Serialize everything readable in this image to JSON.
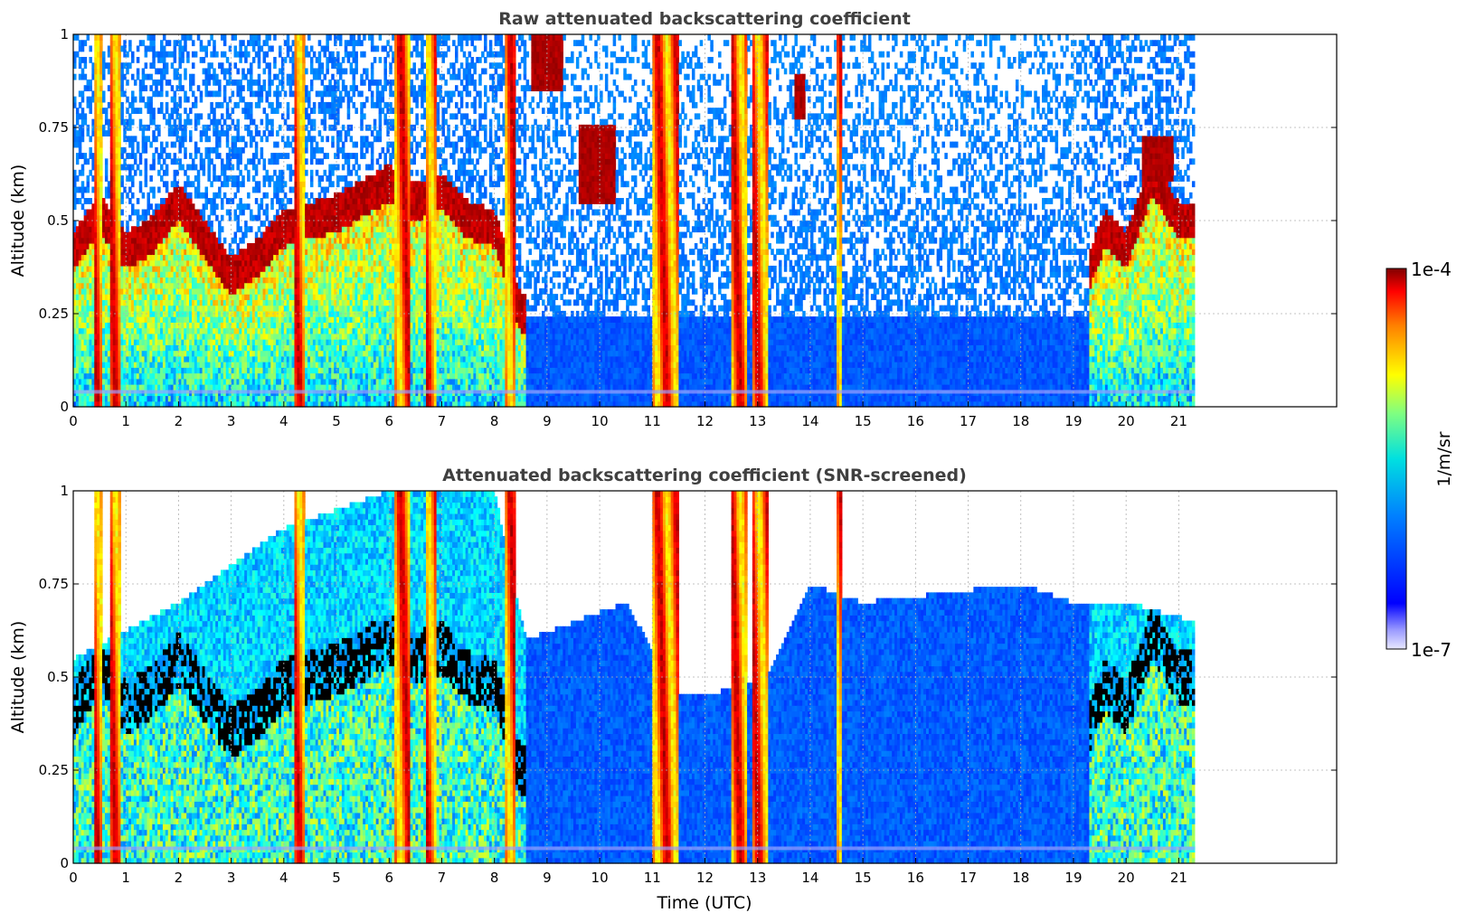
{
  "figure": {
    "xlabel": "Time (UTC)",
    "colorbar": {
      "label": "1/m/sr",
      "min_label": "1e-7",
      "max_label": "1e-4",
      "scale": "log",
      "colormap": "jet"
    }
  },
  "chart_data": [
    {
      "type": "heatmap",
      "title": "Raw attenuated backscattering coefficient",
      "xlabel": "",
      "ylabel": "Altitude (km)",
      "xlim": [
        0,
        24
      ],
      "ylim": [
        0,
        1
      ],
      "data_extent_x": [
        0,
        21.3
      ],
      "xticks": [
        "0",
        "1",
        "2",
        "3",
        "4",
        "5",
        "6",
        "7",
        "8",
        "9",
        "10",
        "11",
        "12",
        "13",
        "14",
        "15",
        "16",
        "17",
        "18",
        "19",
        "20",
        "21"
      ],
      "yticks": [
        "0",
        "0.25",
        "0.5",
        "0.75",
        "1"
      ],
      "grid": true,
      "screened": false,
      "features": {
        "boundary_layer_top_km": [
          [
            0,
            0.42
          ],
          [
            0.5,
            0.52
          ],
          [
            1,
            0.42
          ],
          [
            1.5,
            0.46
          ],
          [
            2,
            0.55
          ],
          [
            2.5,
            0.45
          ],
          [
            3,
            0.35
          ],
          [
            3.5,
            0.4
          ],
          [
            4,
            0.48
          ],
          [
            4.5,
            0.5
          ],
          [
            5,
            0.52
          ],
          [
            5.5,
            0.56
          ],
          [
            6,
            0.6
          ],
          [
            6.5,
            0.55
          ],
          [
            7,
            0.58
          ],
          [
            7.5,
            0.5
          ],
          [
            8,
            0.48
          ],
          [
            8.5,
            0.25
          ],
          [
            12,
            0.25
          ],
          [
            19,
            0.25
          ],
          [
            19.6,
            0.48
          ],
          [
            20,
            0.42
          ],
          [
            20.5,
            0.62
          ],
          [
            21,
            0.5
          ],
          [
            21.3,
            0.5
          ]
        ],
        "precipitation_bands_utc": [
          [
            0.4,
            0.55
          ],
          [
            0.7,
            0.9
          ],
          [
            4.2,
            4.4
          ],
          [
            6.1,
            6.4
          ],
          [
            6.7,
            6.9
          ],
          [
            8.2,
            8.4
          ],
          [
            11.0,
            11.5
          ],
          [
            12.5,
            12.8
          ],
          [
            12.9,
            13.2
          ],
          [
            14.5,
            14.6
          ]
        ],
        "elevated_layers": [
          {
            "t": [
              8.7,
              9.3
            ],
            "z": [
              0.85,
              1.0
            ]
          },
          {
            "t": [
              9.6,
              10.3
            ],
            "z": [
              0.55,
              0.75
            ]
          },
          {
            "t": [
              13.7,
              13.9
            ],
            "z": [
              0.78,
              0.9
            ]
          },
          {
            "t": [
              20.3,
              20.9
            ],
            "z": [
              0.6,
              0.72
            ]
          }
        ]
      }
    },
    {
      "type": "heatmap",
      "title": "Attenuated backscattering coefficient (SNR-screened)",
      "xlabel": "Time (UTC)",
      "ylabel": "Altitude (km)",
      "xlim": [
        0,
        24
      ],
      "ylim": [
        0,
        1
      ],
      "data_extent_x": [
        0,
        21.3
      ],
      "xticks": [
        "0",
        "1",
        "2",
        "3",
        "4",
        "5",
        "6",
        "7",
        "8",
        "9",
        "10",
        "11",
        "12",
        "13",
        "14",
        "15",
        "16",
        "17",
        "18",
        "19",
        "20",
        "21"
      ],
      "yticks": [
        "0",
        "0.25",
        "0.5",
        "0.75",
        "1"
      ],
      "grid": true,
      "screened": true,
      "features": {
        "screened_top_km": [
          [
            0,
            0.55
          ],
          [
            2,
            0.7
          ],
          [
            4,
            0.9
          ],
          [
            6,
            1.0
          ],
          [
            8,
            1.0
          ],
          [
            8.6,
            0.6
          ],
          [
            10.5,
            0.7
          ],
          [
            11.5,
            0.45
          ],
          [
            12,
            0.45
          ],
          [
            13.2,
            0.5
          ],
          [
            14,
            0.75
          ],
          [
            15,
            0.7
          ],
          [
            18,
            0.75
          ],
          [
            19,
            0.7
          ],
          [
            20,
            0.7
          ],
          [
            21.3,
            0.65
          ]
        ],
        "precipitation_bands_utc": [
          [
            0.4,
            0.55
          ],
          [
            0.7,
            0.9
          ],
          [
            4.2,
            4.4
          ],
          [
            6.1,
            6.4
          ],
          [
            6.7,
            6.9
          ],
          [
            8.2,
            8.4
          ],
          [
            11.0,
            11.5
          ],
          [
            12.5,
            12.8
          ],
          [
            12.9,
            13.2
          ],
          [
            14.5,
            14.6
          ]
        ]
      }
    }
  ]
}
